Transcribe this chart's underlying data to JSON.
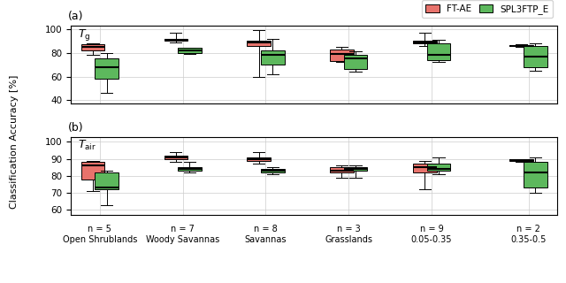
{
  "label_a": "$T_{\\mathrm{g}}$",
  "label_b": "$T_{\\mathrm{air}}$",
  "categories": [
    "Open Shrublands",
    "Woody Savannas",
    "Savannas",
    "Grasslands",
    "0.05-0.35",
    "0.35-0.5"
  ],
  "n_values": [
    5,
    7,
    8,
    3,
    9,
    2
  ],
  "ylabel": "Classification Accuracy [%]",
  "color_ftae": "#E8736C",
  "color_spl": "#5DB85D",
  "legend_labels": [
    "FT-AE",
    "SPL3FTP_E"
  ],
  "ax_a": {
    "ylim": [
      37,
      103
    ],
    "yticks": [
      40,
      60,
      80,
      100
    ],
    "ftae": [
      {
        "whislo": 78,
        "q1": 82,
        "med": 85,
        "q3": 87,
        "whishi": 88
      },
      {
        "whislo": 89,
        "q1": 90,
        "med": 91,
        "q3": 92,
        "whishi": 97
      },
      {
        "whislo": 60,
        "q1": 86,
        "med": 89,
        "q3": 90,
        "whishi": 99
      },
      {
        "whislo": 72,
        "q1": 73,
        "med": 79,
        "q3": 83,
        "whishi": 85
      },
      {
        "whislo": 86,
        "q1": 88,
        "med": 89,
        "q3": 90,
        "whishi": 97
      },
      {
        "whislo": 85,
        "q1": 85.5,
        "med": 86,
        "q3": 86.5,
        "whishi": 87
      }
    ],
    "spl": [
      {
        "whislo": 46,
        "q1": 58,
        "med": 68,
        "q3": 75,
        "whishi": 80
      },
      {
        "whislo": 79,
        "q1": 80,
        "med": 82,
        "q3": 84,
        "whishi": 84
      },
      {
        "whislo": 62,
        "q1": 70,
        "med": 78,
        "q3": 82,
        "whishi": 92
      },
      {
        "whislo": 64,
        "q1": 66,
        "med": 75,
        "q3": 78,
        "whishi": 81
      },
      {
        "whislo": 72,
        "q1": 74,
        "med": 78,
        "q3": 88,
        "whishi": 91
      },
      {
        "whislo": 65,
        "q1": 68,
        "med": 77,
        "q3": 86,
        "whishi": 88
      }
    ]
  },
  "ax_b": {
    "ylim": [
      57,
      103
    ],
    "yticks": [
      60,
      70,
      80,
      90,
      100
    ],
    "ftae": [
      {
        "whislo": 71,
        "q1": 78,
        "med": 86,
        "q3": 88,
        "whishi": 89
      },
      {
        "whislo": 88,
        "q1": 90,
        "med": 91,
        "q3": 92,
        "whishi": 94
      },
      {
        "whislo": 87,
        "q1": 89,
        "med": 90,
        "q3": 91,
        "whishi": 94
      },
      {
        "whislo": 79,
        "q1": 82,
        "med": 83,
        "q3": 85,
        "whishi": 86
      },
      {
        "whislo": 72,
        "q1": 82,
        "med": 85,
        "q3": 87,
        "whishi": 89
      },
      {
        "whislo": 88,
        "q1": 89,
        "med": 89.5,
        "q3": 90,
        "whishi": 90
      }
    ],
    "spl": [
      {
        "whislo": 63,
        "q1": 72,
        "med": 73,
        "q3": 82,
        "whishi": 83
      },
      {
        "whislo": 82,
        "q1": 83,
        "med": 84,
        "q3": 85,
        "whishi": 88
      },
      {
        "whislo": 81,
        "q1": 82,
        "med": 83,
        "q3": 84,
        "whishi": 85
      },
      {
        "whislo": 79,
        "q1": 83,
        "med": 84,
        "q3": 85,
        "whishi": 86
      },
      {
        "whislo": 81,
        "q1": 83,
        "med": 84,
        "q3": 87,
        "whishi": 91
      },
      {
        "whislo": 70,
        "q1": 73,
        "med": 82,
        "q3": 88,
        "whishi": 91
      }
    ]
  }
}
